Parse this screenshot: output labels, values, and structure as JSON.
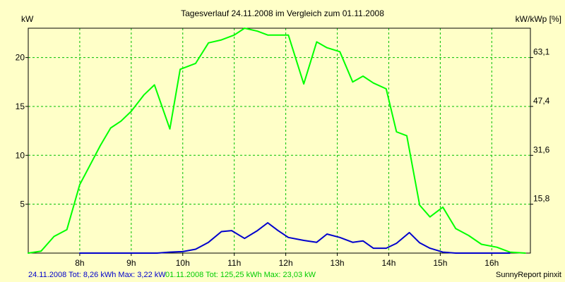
{
  "chart_data": {
    "type": "line",
    "title": "Tagesverlauf 24.11.2008 im Vergleich zum 01.11.2008",
    "ylabel": "kW",
    "ylabel_right": "kW/kWp [%]",
    "ylim": [
      0,
      23
    ],
    "xlim": [
      7.0,
      16.75
    ],
    "x_ticks": [
      {
        "x": 8,
        "label": "8h"
      },
      {
        "x": 9,
        "label": "9h"
      },
      {
        "x": 10,
        "label": "10h"
      },
      {
        "x": 11,
        "label": "11h"
      },
      {
        "x": 12,
        "label": "12h"
      },
      {
        "x": 13,
        "label": "13h"
      },
      {
        "x": 14,
        "label": "14h"
      },
      {
        "x": 15,
        "label": "15h"
      },
      {
        "x": 16,
        "label": "16h"
      }
    ],
    "y_ticks": [
      {
        "y": 5,
        "label": "5"
      },
      {
        "y": 10,
        "label": "10"
      },
      {
        "y": 15,
        "label": "15"
      },
      {
        "y": 20,
        "label": "20"
      }
    ],
    "y_ticks_right": [
      {
        "y": 5,
        "label": "15,8"
      },
      {
        "y": 10,
        "label": "31,6"
      },
      {
        "y": 15,
        "label": "47,4"
      },
      {
        "y": 20,
        "label": "63,1"
      }
    ],
    "grid": true,
    "series": [
      {
        "color": "#0000cc",
        "x": [
          8.0,
          8.5,
          9.0,
          9.5,
          9.75,
          10.0,
          10.25,
          10.5,
          10.75,
          10.95,
          11.2,
          11.45,
          11.65,
          11.85,
          12.05,
          12.35,
          12.6,
          12.8,
          13.05,
          13.3,
          13.5,
          13.7,
          13.95,
          14.15,
          14.4,
          14.6,
          14.8,
          15.05,
          15.3,
          15.55,
          15.8,
          16.1,
          16.35
        ],
        "y": [
          0.0,
          0.0,
          0.0,
          0.0,
          0.1,
          0.15,
          0.4,
          1.1,
          2.2,
          2.3,
          1.5,
          2.3,
          3.1,
          2.3,
          1.6,
          1.3,
          1.1,
          1.95,
          1.6,
          1.1,
          1.25,
          0.5,
          0.5,
          1.0,
          2.1,
          1.05,
          0.5,
          0.1,
          0.0,
          0.0,
          0.0,
          0.0,
          0.0
        ]
      },
      {
        "color": "#00ff00",
        "x": [
          7.0,
          7.25,
          7.5,
          7.75,
          8.0,
          8.2,
          8.4,
          8.6,
          8.8,
          9.0,
          9.25,
          9.45,
          9.75,
          9.95,
          10.25,
          10.5,
          10.75,
          11.0,
          11.2,
          11.45,
          11.65,
          11.85,
          12.05,
          12.35,
          12.6,
          12.8,
          13.05,
          13.3,
          13.5,
          13.7,
          13.95,
          14.15,
          14.35,
          14.6,
          14.8,
          15.05,
          15.3,
          15.55,
          15.8,
          16.1,
          16.35,
          16.65
        ],
        "y": [
          0.0,
          0.2,
          1.7,
          2.4,
          7.0,
          9.0,
          11.0,
          12.8,
          13.5,
          14.5,
          16.2,
          17.2,
          12.7,
          18.8,
          19.4,
          21.5,
          21.8,
          22.3,
          23.0,
          22.7,
          22.3,
          22.3,
          22.3,
          17.3,
          21.6,
          21.0,
          20.6,
          17.5,
          18.1,
          17.4,
          16.8,
          12.4,
          12.0,
          4.9,
          3.7,
          4.7,
          2.5,
          1.8,
          0.9,
          0.6,
          0.1,
          0.0
        ]
      }
    ]
  },
  "footer": {
    "series1_label": "24.11.2008 Tot: 8,26 kWh Max: 3,22 kW",
    "series2_label": "01.11.2008 Tot: 125,25 kWh Max: 23,03 kW",
    "credit": "SunnyReport pinxit"
  },
  "colors": {
    "background": "#ffffc8",
    "grid": "#00c000",
    "series1": "#0000cc",
    "series2": "#00ff00"
  }
}
